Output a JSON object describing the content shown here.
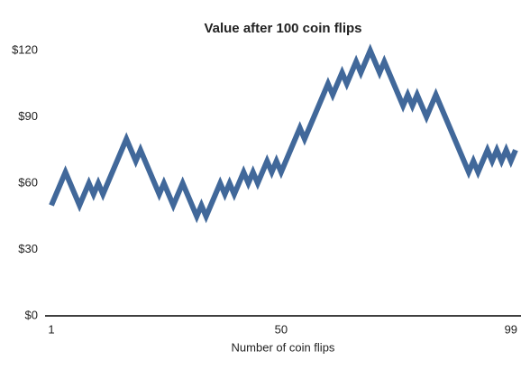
{
  "chart_data": {
    "type": "line",
    "title": "Value after 100 coin flips",
    "x_label": "Number of coin flips",
    "x": [
      1,
      2,
      3,
      4,
      5,
      6,
      7,
      8,
      9,
      10,
      11,
      12,
      13,
      14,
      15,
      16,
      17,
      18,
      19,
      20,
      21,
      22,
      23,
      24,
      25,
      26,
      27,
      28,
      29,
      30,
      31,
      32,
      33,
      34,
      35,
      36,
      37,
      38,
      39,
      40,
      41,
      42,
      43,
      44,
      45,
      46,
      47,
      48,
      49,
      50,
      51,
      52,
      53,
      54,
      55,
      56,
      57,
      58,
      59,
      60,
      61,
      62,
      63,
      64,
      65,
      66,
      67,
      68,
      69,
      70,
      71,
      72,
      73,
      74,
      75,
      76,
      77,
      78,
      79,
      80,
      81,
      82,
      83,
      84,
      85,
      86,
      87,
      88,
      89,
      90,
      91,
      92,
      93,
      94,
      95,
      96,
      97,
      98,
      99,
      100
    ],
    "series": [
      {
        "color": "#41689a",
        "values": [
          50,
          55,
          60,
          65,
          60,
          55,
          50,
          55,
          60,
          55,
          60,
          55,
          60,
          65,
          70,
          75,
          80,
          75,
          70,
          75,
          70,
          65,
          60,
          55,
          60,
          55,
          50,
          55,
          60,
          55,
          50,
          45,
          50,
          45,
          50,
          55,
          60,
          55,
          60,
          55,
          60,
          65,
          60,
          65,
          60,
          65,
          70,
          65,
          70,
          65,
          70,
          75,
          80,
          85,
          80,
          85,
          90,
          95,
          100,
          105,
          100,
          105,
          110,
          105,
          110,
          115,
          110,
          115,
          120,
          115,
          110,
          115,
          110,
          105,
          100,
          95,
          100,
          95,
          100,
          95,
          90,
          95,
          100,
          95,
          90,
          85,
          80,
          75,
          70,
          65,
          70,
          65,
          70,
          75,
          70,
          75,
          70,
          75,
          70,
          75
        ]
      }
    ],
    "xlim": [
      1,
      100
    ],
    "xticks": [
      1,
      50,
      99
    ],
    "ylim": [
      0,
      120
    ],
    "yticks": [
      {
        "value": 0,
        "label": "$0"
      },
      {
        "value": 30,
        "label": "$30"
      },
      {
        "value": 60,
        "label": "$60"
      },
      {
        "value": 90,
        "label": "$90"
      },
      {
        "value": 120,
        "label": "$120"
      }
    ],
    "grid": false
  }
}
